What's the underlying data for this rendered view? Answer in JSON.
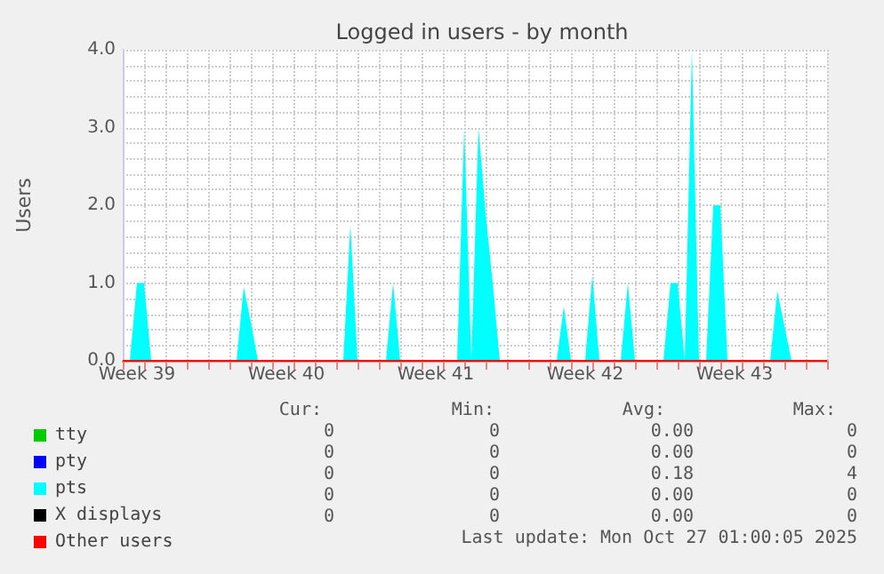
{
  "chart_data": {
    "type": "area",
    "title": "Logged in users - by month",
    "ylabel": "Users",
    "categories": [
      null,
      null,
      "Week 39",
      null,
      null,
      null,
      null,
      null,
      null,
      null,
      null,
      null,
      null,
      null,
      null,
      null,
      null,
      null,
      null,
      null,
      null,
      null,
      null,
      "Week 40",
      null,
      null,
      null,
      null,
      null,
      null,
      null,
      null,
      null,
      null,
      null,
      null,
      null,
      null,
      null,
      null,
      null,
      null,
      null,
      null,
      "Week 41",
      null,
      null,
      null,
      null,
      null,
      null,
      null,
      null,
      null,
      null,
      null,
      null,
      null,
      null,
      null,
      null,
      null,
      null,
      null,
      null,
      "Week 42",
      null,
      null,
      null,
      null,
      null,
      null,
      null,
      null,
      null,
      null,
      null,
      null,
      null,
      null,
      null,
      null,
      null,
      null,
      null,
      null,
      "Week 43",
      null,
      null,
      null,
      null,
      null,
      null,
      null,
      null,
      null,
      null,
      null,
      null,
      null
    ],
    "ylim": [
      0,
      4
    ],
    "yticks": [
      {
        "value": 0,
        "label": "0.0"
      },
      {
        "value": 1,
        "label": "1.0"
      },
      {
        "value": 2,
        "label": "2.0"
      },
      {
        "value": 3,
        "label": "3.0"
      },
      {
        "value": 4,
        "label": "4.0"
      },
      {
        "value": 0.2,
        "label": null
      },
      {
        "value": 0.4,
        "label": null
      },
      {
        "value": 0.6,
        "label": null
      },
      {
        "value": 0.8,
        "label": null
      },
      {
        "value": 1.2,
        "label": null
      },
      {
        "value": 1.4,
        "label": null
      },
      {
        "value": 1.6,
        "label": null
      },
      {
        "value": 1.8,
        "label": null
      },
      {
        "value": 2.2,
        "label": null
      },
      {
        "value": 2.4,
        "label": null
      },
      {
        "value": 2.6,
        "label": null
      },
      {
        "value": 2.8,
        "label": null
      },
      {
        "value": 3.2,
        "label": null
      },
      {
        "value": 3.4,
        "label": null
      },
      {
        "value": 3.6,
        "label": null
      },
      {
        "value": 3.8,
        "label": null
      }
    ],
    "grid": true,
    "legend": "bottom left",
    "series": [
      {
        "name": "tty",
        "type": "line",
        "color": "#00cc00",
        "values": [
          null,
          null,
          null,
          null,
          null,
          null,
          null,
          null,
          null,
          null,
          null,
          null,
          null,
          null,
          null,
          null,
          null,
          null,
          null,
          null,
          null,
          null,
          null,
          null,
          null,
          null,
          null,
          null,
          null,
          null,
          null,
          null,
          null,
          null,
          null,
          null,
          null,
          null,
          null,
          null,
          null,
          null,
          null,
          null,
          null,
          null,
          null,
          null,
          null,
          null,
          null,
          null,
          null,
          null,
          null,
          null,
          null,
          null,
          null,
          null,
          null,
          null,
          null,
          null,
          null,
          null,
          null,
          null,
          null,
          null,
          null,
          null,
          null,
          null,
          null,
          null,
          null,
          null,
          null,
          null,
          null,
          null,
          null,
          null,
          null,
          null,
          null,
          null,
          null,
          null,
          null,
          null,
          null,
          null,
          null,
          null,
          null,
          null,
          null,
          null
        ]
      },
      {
        "name": "pty",
        "type": "line",
        "color": "#0000ff",
        "values": [
          null,
          null,
          null,
          null,
          null,
          null,
          null,
          null,
          null,
          null,
          null,
          null,
          null,
          null,
          null,
          null,
          null,
          null,
          null,
          null,
          null,
          null,
          null,
          null,
          null,
          null,
          null,
          null,
          null,
          null,
          null,
          null,
          null,
          null,
          null,
          null,
          null,
          null,
          null,
          null,
          null,
          null,
          null,
          null,
          null,
          null,
          null,
          null,
          null,
          null,
          null,
          null,
          null,
          null,
          null,
          null,
          null,
          null,
          null,
          null,
          null,
          null,
          null,
          null,
          null,
          null,
          null,
          null,
          null,
          null,
          null,
          null,
          null,
          null,
          null,
          null,
          null,
          null,
          null,
          null,
          null,
          null,
          null,
          null,
          null,
          null,
          null,
          null,
          null,
          null,
          null,
          null,
          null,
          null,
          null,
          null,
          null,
          null,
          null,
          null
        ]
      },
      {
        "name": "pts",
        "color": "#00ffff",
        "values": [
          0,
          0,
          1,
          1,
          0,
          0,
          0,
          0,
          0,
          0,
          0,
          0,
          0,
          0,
          0,
          0,
          0,
          0.95,
          0.5,
          0,
          0,
          0,
          0,
          0,
          0,
          0,
          0,
          0,
          0,
          0,
          0,
          0,
          1.75,
          0,
          0,
          0,
          0,
          0,
          1,
          0,
          0,
          0,
          0,
          0,
          0,
          0,
          0,
          0,
          3,
          0,
          3,
          1.9,
          1,
          0,
          0,
          0,
          0,
          0,
          0,
          0,
          0,
          0,
          0.7,
          0,
          0,
          0,
          1.1,
          0,
          0,
          0,
          0,
          1,
          0,
          0,
          0,
          0,
          0,
          1,
          1,
          0,
          4,
          0,
          0,
          2,
          2,
          0,
          0,
          0,
          0,
          0,
          0,
          0,
          0.9,
          0.45,
          0,
          0,
          0,
          0,
          0,
          0
        ]
      },
      {
        "name": "X displays",
        "type": "line",
        "color": "#000000",
        "values": [
          null,
          null,
          null,
          null,
          null,
          null,
          null,
          null,
          null,
          null,
          null,
          null,
          null,
          null,
          null,
          null,
          null,
          null,
          null,
          null,
          null,
          null,
          null,
          null,
          null,
          null,
          null,
          null,
          null,
          null,
          null,
          null,
          null,
          null,
          null,
          null,
          null,
          null,
          null,
          null,
          null,
          null,
          null,
          null,
          null,
          null,
          null,
          null,
          null,
          null,
          null,
          null,
          null,
          null,
          null,
          null,
          null,
          null,
          null,
          null,
          null,
          null,
          null,
          null,
          null,
          null,
          null,
          null,
          null,
          null,
          null,
          null,
          null,
          null,
          null,
          null,
          null,
          null,
          null,
          null,
          null,
          null,
          null,
          null,
          null,
          null,
          null,
          null,
          null,
          null,
          null,
          null,
          null,
          null,
          null,
          null,
          null,
          null,
          null,
          null
        ]
      },
      {
        "name": "Other users",
        "type": "line",
        "color": "#ff0000",
        "values": [
          0,
          0,
          0,
          0,
          0,
          0,
          0,
          0,
          0,
          0,
          0,
          0,
          0,
          0,
          0,
          0,
          0,
          0,
          0,
          0,
          0,
          0,
          0,
          0,
          0,
          0,
          0,
          0,
          0,
          0,
          0,
          0,
          0,
          0,
          0,
          0,
          0,
          0,
          0,
          0,
          0,
          0,
          0,
          0,
          0,
          0,
          0,
          0,
          0,
          0,
          0,
          0,
          0,
          0,
          0,
          0,
          0,
          0,
          0,
          0,
          0,
          0,
          0,
          0,
          0,
          0,
          0,
          0,
          0,
          0,
          0,
          0,
          0,
          0,
          0,
          0,
          0,
          0,
          0,
          0,
          0,
          0,
          0,
          0,
          0,
          0,
          0,
          0,
          0,
          0,
          0,
          0,
          0,
          0,
          0,
          0,
          0,
          0,
          0,
          0
        ]
      }
    ],
    "annotations": [
      "Cur:",
      "Min:",
      "Avg:",
      "Max:",
      "0",
      "0",
      "0.00",
      "0",
      "0",
      "0",
      "0.00",
      "0",
      "0",
      "0",
      "0.18",
      "4",
      "0",
      "0",
      "0.00",
      "0",
      "0",
      "0",
      "0.00",
      "0",
      "Last update: Mon Oct 27 01:00:05 2025"
    ]
  }
}
